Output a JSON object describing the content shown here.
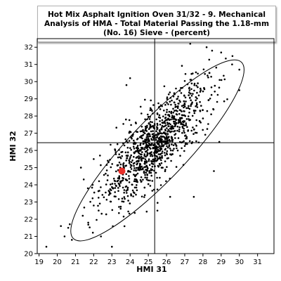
{
  "chart_data": {
    "type": "scatter",
    "title": "Hot Mix Asphalt Ignition Oven 31/32 - 9. Mechanical Analysis of HMA - Total Material Passing the 1.18-mm (No. 16) Sieve - (percent)",
    "xlabel": "HMI 31",
    "ylabel": "HMI 32",
    "xlim": [
      18.9,
      31.9
    ],
    "ylim": [
      20.0,
      32.5
    ],
    "x_ticks": [
      "19",
      "20",
      "21",
      "22",
      "23",
      "24",
      "25",
      "26",
      "27",
      "28",
      "29",
      "30",
      "31"
    ],
    "y_ticks": [
      "20",
      "21",
      "22",
      "23",
      "24",
      "25",
      "26",
      "27",
      "28",
      "29",
      "30",
      "31",
      "32"
    ],
    "reference_lines": {
      "x": 25.35,
      "y": 26.45
    },
    "highlight_point": {
      "x": 23.55,
      "y": 24.8,
      "color": "#e8302a"
    },
    "confidence_ellipse": {
      "center": [
        25.5,
        26.0
      ],
      "major_half_length": 6.9,
      "minor_half_length": 1.65,
      "angle_deg": 48
    },
    "point_cloud": {
      "description_n_points": 1100,
      "mean": [
        25.4,
        26.4
      ],
      "sd": [
        1.45,
        1.75
      ],
      "correlation": 0.8
    },
    "points": [
      [
        19.4,
        20.4
      ],
      [
        20.2,
        21.6
      ],
      [
        20.4,
        21.0
      ],
      [
        20.8,
        20.8
      ],
      [
        20.6,
        21.5
      ],
      [
        21.7,
        21.8
      ],
      [
        22.0,
        22.8
      ],
      [
        21.4,
        22.2
      ],
      [
        23.0,
        20.4
      ],
      [
        22.4,
        21.0
      ],
      [
        28.2,
        32.0
      ],
      [
        27.3,
        32.2
      ],
      [
        30.0,
        30.7
      ],
      [
        28.5,
        31.8
      ],
      [
        30.0,
        29.5
      ],
      [
        29.6,
        31.0
      ],
      [
        27.5,
        23.3
      ],
      [
        28.6,
        24.8
      ],
      [
        28.9,
        26.5
      ],
      [
        24.0,
        30.2
      ],
      [
        27.3,
        29.3
      ],
      [
        23.8,
        29.8
      ],
      [
        21.3,
        25.0
      ],
      [
        22.0,
        25.5
      ],
      [
        25.5,
        22.5
      ],
      [
        26.2,
        23.3
      ]
    ],
    "colors": {
      "points": "#000000",
      "highlight": "#e8302a",
      "reference_lines": "#000000",
      "ellipse": "#000000"
    }
  }
}
